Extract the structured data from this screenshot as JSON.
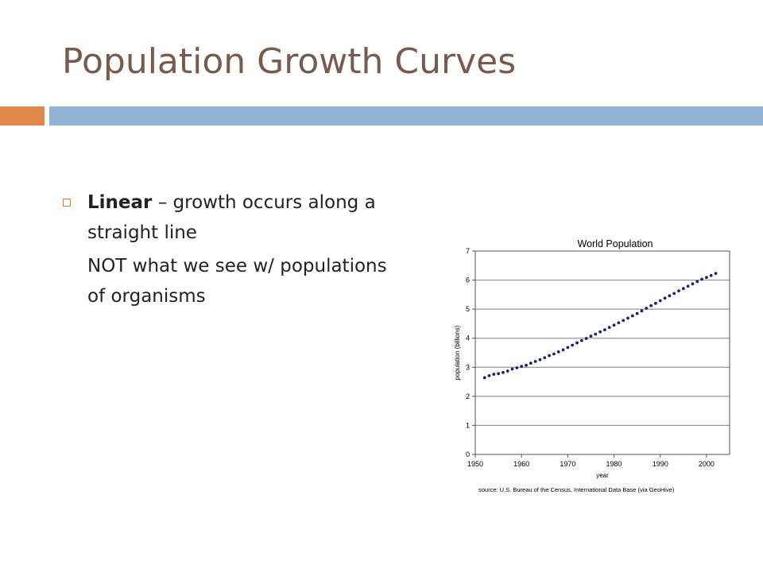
{
  "slide": {
    "title": "Population Growth Curves",
    "colors": {
      "title": "#7a5a4d",
      "accent_orange": "#e0884a",
      "accent_blue": "#93b3d4",
      "bullet_marker": "#d1782f"
    }
  },
  "bullets": [
    {
      "term": "Linear",
      "dash": " – ",
      "text": "growth occurs along a straight line",
      "sub": "NOT what we see w/ populations of organisms"
    }
  ],
  "chart_data": {
    "type": "scatter",
    "title": "World Population",
    "xlabel": "year",
    "ylabel": "population (billions)",
    "xlim": [
      1950,
      2005
    ],
    "ylim": [
      0,
      7
    ],
    "xticks": [
      1950,
      1960,
      1970,
      1980,
      1990,
      2000
    ],
    "yticks": [
      0,
      1,
      2,
      3,
      4,
      5,
      6,
      7
    ],
    "grid": "horizontal",
    "source": "source: U.S. Bureau of the Census, International Data Base (via GeoHive)",
    "marker_color": "#1a1f80",
    "x": [
      1952,
      1953,
      1954,
      1955,
      1956,
      1957,
      1958,
      1959,
      1960,
      1961,
      1962,
      1963,
      1964,
      1965,
      1966,
      1967,
      1968,
      1969,
      1970,
      1971,
      1972,
      1973,
      1974,
      1975,
      1976,
      1977,
      1978,
      1979,
      1980,
      1981,
      1982,
      1983,
      1984,
      1985,
      1986,
      1987,
      1988,
      1989,
      1990,
      1991,
      1992,
      1993,
      1994,
      1995,
      1996,
      1997,
      1998,
      1999,
      2000,
      2001,
      2002
    ],
    "y": [
      2.64,
      2.71,
      2.76,
      2.78,
      2.82,
      2.87,
      2.94,
      2.98,
      3.03,
      3.07,
      3.14,
      3.2,
      3.26,
      3.33,
      3.4,
      3.46,
      3.53,
      3.6,
      3.68,
      3.76,
      3.84,
      3.92,
      3.99,
      4.07,
      4.14,
      4.22,
      4.29,
      4.37,
      4.45,
      4.53,
      4.61,
      4.69,
      4.77,
      4.85,
      4.94,
      5.03,
      5.12,
      5.2,
      5.29,
      5.38,
      5.46,
      5.54,
      5.63,
      5.71,
      5.79,
      5.87,
      5.95,
      6.03,
      6.09,
      6.16,
      6.23
    ]
  }
}
